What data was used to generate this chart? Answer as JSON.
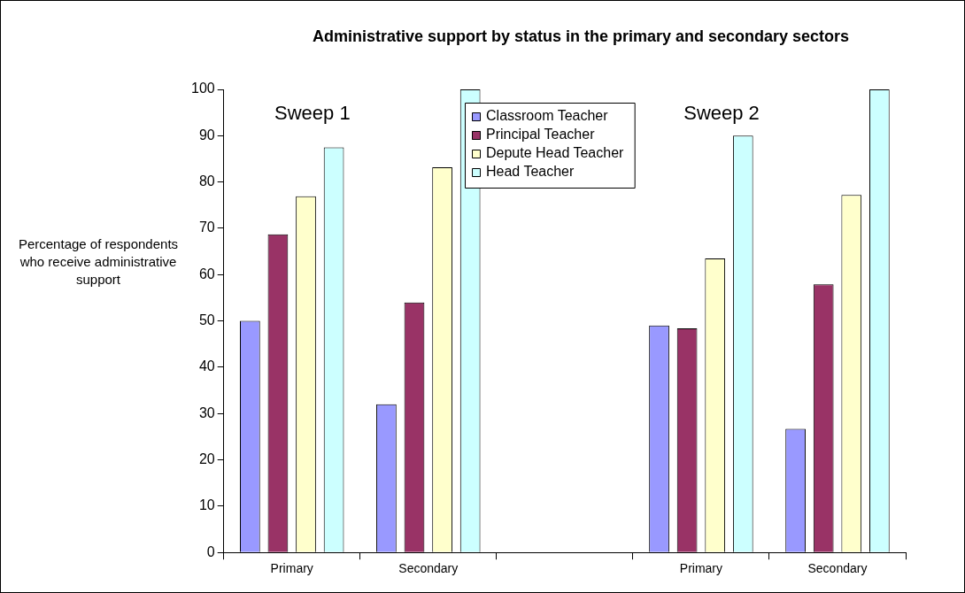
{
  "chart_data": {
    "type": "bar",
    "title": "Administrative support by status in the primary and secondary sectors",
    "ylabel": "Percentage of respondents who receive administrative support",
    "categories": [
      "Primary",
      "Secondary",
      null,
      "Primary",
      "Secondary"
    ],
    "series": [
      {
        "name": "Classroom Teacher",
        "color": "#9999ff",
        "values": [
          50,
          32,
          null,
          49,
          26.7
        ]
      },
      {
        "name": "Principal Teacher",
        "color": "#993366",
        "values": [
          68.7,
          54,
          null,
          48.4,
          57.9
        ]
      },
      {
        "name": "Depute Head Teacher",
        "color": "#ffffcc",
        "values": [
          76.9,
          83.2,
          null,
          63.5,
          77.2
        ]
      },
      {
        "name": "Head Teacher",
        "color": "#ccffff",
        "values": [
          87.5,
          100,
          null,
          90,
          100
        ]
      }
    ],
    "ylim": [
      0,
      100
    ],
    "yticks": [
      0,
      10,
      20,
      30,
      40,
      50,
      60,
      70,
      80,
      90,
      100
    ],
    "grid": false,
    "legend": "top",
    "annotations": [
      "Sweep 1",
      "Sweep 2"
    ]
  }
}
